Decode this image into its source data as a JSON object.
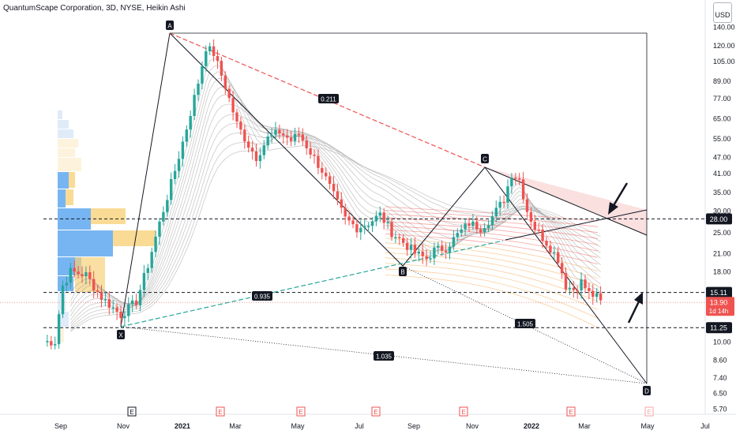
{
  "chart_title": "QuantumScape Corporation, 3D, NYSE, Heikin Ashi",
  "usd_badge": {
    "top": "⁠",
    "label": "USD"
  },
  "colors": {
    "up": "#26a69a",
    "down": "#ef5350",
    "price_tag": "#ef5350"
  },
  "chart_data": {
    "type": "candlestick",
    "title": "QuantumScape Corporation, 3D, NYSE, Heikin Ashi",
    "y_scale": "log",
    "ylim": [
      5.5,
      145
    ],
    "y_ticks": [
      140.0,
      120.0,
      105.0,
      89.0,
      77.0,
      65.0,
      55.0,
      47.0,
      41.0,
      35.0,
      30.0,
      25.0,
      21.0,
      18.0,
      15.0,
      12.0,
      10.0,
      8.6,
      7.4,
      6.5,
      5.7
    ],
    "y_tick_labels": [
      "140.00",
      "120.00",
      "105.00",
      "89.00",
      "77.00",
      "65.00",
      "55.00",
      "47.00",
      "41.00",
      "35.00",
      "30.00",
      "25.00",
      "21.00",
      "18.00",
      "",
      "",
      "10.00",
      "8.60",
      "7.40",
      "6.50",
      "5.70"
    ],
    "x_tick_labels": [
      "Sep",
      "Nov",
      "2021",
      "Mar",
      "May",
      "Jul",
      "Sep",
      "Nov",
      "2022",
      "Mar",
      "May",
      "Jul"
    ],
    "price_labels": [
      {
        "value": 28.0,
        "text": "28.00",
        "style": "dark"
      },
      {
        "value": 15.11,
        "text": "15.11",
        "style": "dark"
      },
      {
        "value": 11.25,
        "text": "11.25",
        "style": "dark"
      }
    ],
    "last_price": {
      "value": 13.9,
      "text": "13.90",
      "countdown": "1d 14h"
    },
    "pattern_points": [
      {
        "label": "X",
        "value": 11.25
      },
      {
        "label": "A",
        "value": 132.0
      },
      {
        "label": "B",
        "value": 19.0
      },
      {
        "label": "C",
        "value": 43.0
      },
      {
        "label": "D",
        "value": 6.9
      }
    ],
    "ratios": [
      "0.211",
      "0.935",
      "1.505",
      "1.035"
    ],
    "earnings_markers": [
      "E",
      "E",
      "E",
      "E",
      "E",
      "E",
      "E"
    ],
    "waypoints": [
      [
        0,
        10.0
      ],
      [
        3,
        10.0
      ],
      [
        5,
        16.0
      ],
      [
        7,
        18.0
      ],
      [
        11,
        17.5
      ],
      [
        15,
        14.5
      ],
      [
        20,
        12.5
      ],
      [
        24,
        14.0
      ],
      [
        27,
        19.0
      ],
      [
        30,
        27.0
      ],
      [
        34,
        42.0
      ],
      [
        37,
        60.0
      ],
      [
        40,
        88.0
      ],
      [
        42,
        118.0
      ],
      [
        44,
        112.0
      ],
      [
        47,
        85.0
      ],
      [
        50,
        62.0
      ],
      [
        53,
        52.0
      ],
      [
        55,
        47.0
      ],
      [
        58,
        55.0
      ],
      [
        61,
        58.0
      ],
      [
        64,
        54.0
      ],
      [
        66,
        57.0
      ],
      [
        69,
        49.0
      ],
      [
        72,
        42.0
      ],
      [
        75,
        34.0
      ],
      [
        78,
        28.0
      ],
      [
        81,
        26.0
      ],
      [
        84,
        27.0
      ],
      [
        87,
        29.0
      ],
      [
        90,
        25.0
      ],
      [
        93,
        23.0
      ],
      [
        96,
        21.0
      ],
      [
        99,
        20.0
      ],
      [
        101,
        21.5
      ],
      [
        104,
        22.0
      ],
      [
        107,
        24.5
      ],
      [
        110,
        27.0
      ],
      [
        113,
        26.0
      ],
      [
        116,
        28.5
      ],
      [
        119,
        33.0
      ],
      [
        121,
        41.0
      ],
      [
        123,
        39.0
      ],
      [
        125,
        30.0
      ],
      [
        127,
        26.0
      ],
      [
        129,
        24.0
      ],
      [
        131,
        22.0
      ],
      [
        133,
        20.0
      ],
      [
        135,
        16.0
      ],
      [
        137,
        15.5
      ],
      [
        139,
        16.5
      ],
      [
        141,
        15.0
      ],
      [
        143,
        14.5
      ],
      [
        144,
        13.9
      ]
    ]
  }
}
